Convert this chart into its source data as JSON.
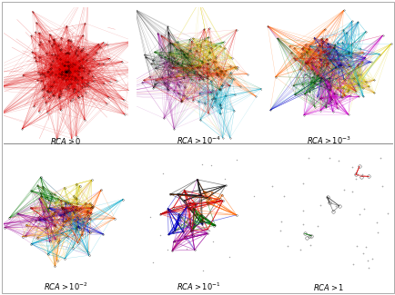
{
  "label_texts": [
    "$RCA > 0$",
    "$RCA > 10^{-4}$",
    "$RCA > 10^{-3}$",
    "$RCA > 10^{-2}$",
    "$RCA > 10^{-1}$",
    "$RCA > 1$"
  ],
  "background_color": "#ffffff",
  "seeds": [
    42,
    7,
    13,
    99,
    55,
    23
  ],
  "n_nodes": [
    220,
    190,
    170,
    130,
    55,
    12
  ],
  "n_edges": [
    2200,
    1900,
    1600,
    1200,
    350,
    20
  ],
  "colors_per_panel": [
    [
      "#dd0000"
    ],
    [
      "#dd0000",
      "#990099",
      "#00aacc",
      "#ddcc00",
      "#ff6600",
      "#007700",
      "#111111"
    ],
    [
      "#0000cc",
      "#dd0000",
      "#007700",
      "#ddcc00",
      "#cc00cc",
      "#00aacc",
      "#ff6600"
    ],
    [
      "#dd0000",
      "#990099",
      "#00aacc",
      "#ddcc00",
      "#ff6600",
      "#007700",
      "#0000cc",
      "#ff9900"
    ],
    [
      "#dd0000",
      "#007700",
      "#0000cc",
      "#ff6600",
      "#990099",
      "#111111"
    ],
    [
      "#dd0000",
      "#007700",
      "#222222"
    ]
  ],
  "cluster_spread": [
    0.28,
    0.2,
    0.2,
    0.18,
    0.14,
    0.06
  ],
  "cluster_centers_per_panel": [
    [
      [
        0.5,
        0.52
      ]
    ],
    [
      [
        0.5,
        0.55
      ],
      [
        0.32,
        0.42
      ],
      [
        0.62,
        0.32
      ],
      [
        0.58,
        0.65
      ],
      [
        0.68,
        0.52
      ],
      [
        0.38,
        0.65
      ],
      [
        0.3,
        0.58
      ]
    ],
    [
      [
        0.55,
        0.58
      ],
      [
        0.42,
        0.62
      ],
      [
        0.38,
        0.45
      ],
      [
        0.68,
        0.45
      ],
      [
        0.52,
        0.32
      ],
      [
        0.65,
        0.65
      ],
      [
        0.3,
        0.65
      ]
    ],
    [
      [
        0.48,
        0.52
      ],
      [
        0.3,
        0.45
      ],
      [
        0.58,
        0.35
      ],
      [
        0.58,
        0.62
      ],
      [
        0.68,
        0.52
      ],
      [
        0.38,
        0.62
      ],
      [
        0.52,
        0.48
      ],
      [
        0.38,
        0.35
      ]
    ],
    [
      [
        0.42,
        0.52
      ],
      [
        0.52,
        0.45
      ],
      [
        0.35,
        0.4
      ],
      [
        0.58,
        0.58
      ],
      [
        0.45,
        0.35
      ],
      [
        0.52,
        0.62
      ]
    ],
    [
      [
        0.75,
        0.78
      ],
      [
        0.35,
        0.32
      ],
      [
        0.52,
        0.52
      ]
    ]
  ],
  "isolated_panel5": {
    "n_isolated": 35,
    "x_range": [
      0.05,
      0.95
    ],
    "y_range": [
      0.08,
      0.92
    ]
  }
}
